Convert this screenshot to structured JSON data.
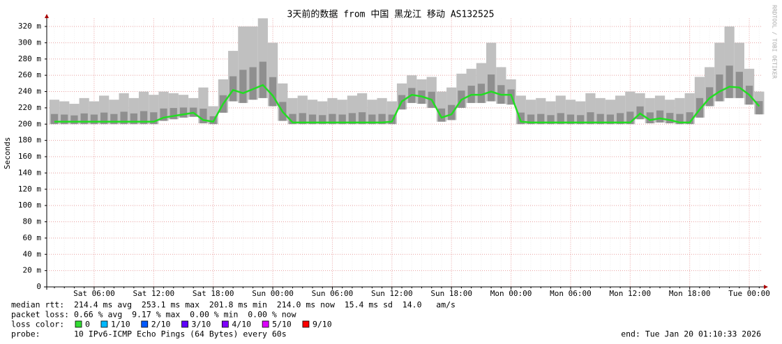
{
  "chart_data": {
    "type": "smokeping",
    "title": "3天前的数据 from 中国 黑龙江 移动 AS132525",
    "y_label": "Seconds",
    "side_text": "RRDTOOL / TOBI OETIKER",
    "ylim": [
      0,
      330
    ],
    "yticks": [
      0,
      {
        "value": 20,
        "label": "20 m"
      },
      {
        "value": 40,
        "label": "40 m"
      },
      {
        "value": 60,
        "label": "60 m"
      },
      {
        "value": 80,
        "label": "80 m"
      },
      {
        "value": 100,
        "label": "100 m"
      },
      {
        "value": 120,
        "label": "120 m"
      },
      {
        "value": 140,
        "label": "140 m"
      },
      {
        "value": 160,
        "label": "160 m"
      },
      {
        "value": 180,
        "label": "180 m"
      },
      {
        "value": 200,
        "label": "200 m"
      },
      {
        "value": 220,
        "label": "220 m"
      },
      {
        "value": 240,
        "label": "240 m"
      },
      {
        "value": 260,
        "label": "260 m"
      },
      {
        "value": 280,
        "label": "280 m"
      },
      {
        "value": 300,
        "label": "300 m"
      },
      {
        "value": 320,
        "label": "320 m"
      }
    ],
    "grid": true,
    "categories": [
      null,
      null,
      null,
      null,
      "Sat 06:00",
      null,
      null,
      null,
      null,
      null,
      "Sat 12:00",
      null,
      null,
      null,
      null,
      null,
      "Sat 18:00",
      null,
      null,
      null,
      null,
      null,
      "Sun 00:00",
      null,
      null,
      null,
      null,
      null,
      "Sun 06:00",
      null,
      null,
      null,
      null,
      null,
      "Sun 12:00",
      null,
      null,
      null,
      null,
      null,
      "Sun 18:00",
      null,
      null,
      null,
      null,
      null,
      "Mon 00:00",
      null,
      null,
      null,
      null,
      null,
      "Mon 06:00",
      null,
      null,
      null,
      null,
      null,
      "Mon 12:00",
      null,
      null,
      null,
      null,
      null,
      "Mon 18:00",
      null,
      null,
      null,
      null,
      null,
      "Tue 00:00",
      null
    ],
    "median": {
      "color": "#22dd22",
      "values": [
        203,
        203,
        203,
        203,
        203,
        203,
        203,
        203,
        203,
        203,
        203,
        208,
        210,
        212,
        214,
        205,
        203,
        225,
        242,
        238,
        243,
        248,
        235,
        215,
        202,
        202,
        202,
        202,
        202,
        202,
        202,
        202,
        202,
        202,
        203,
        228,
        236,
        234,
        230,
        208,
        212,
        230,
        236,
        236,
        240,
        236,
        236,
        203,
        202,
        202,
        202,
        202,
        202,
        202,
        202,
        202,
        202,
        202,
        202,
        213,
        205,
        207,
        205,
        202,
        202,
        218,
        232,
        240,
        246,
        245,
        236,
        222
      ]
    },
    "smoke": {
      "color": "#c0c0c0",
      "dark": "#555555",
      "low": [
        200,
        200,
        200,
        200,
        200,
        200,
        200,
        200,
        200,
        200,
        200,
        204,
        206,
        208,
        209,
        201,
        200,
        214,
        228,
        226,
        230,
        232,
        222,
        204,
        200,
        200,
        200,
        200,
        200,
        200,
        200,
        200,
        200,
        200,
        200,
        218,
        226,
        225,
        220,
        203,
        205,
        220,
        226,
        226,
        228,
        225,
        224,
        200,
        200,
        200,
        200,
        200,
        200,
        200,
        200,
        200,
        200,
        200,
        200,
        206,
        201,
        202,
        201,
        200,
        200,
        208,
        222,
        228,
        232,
        232,
        224,
        212
      ],
      "high": [
        230,
        228,
        225,
        232,
        228,
        235,
        230,
        238,
        232,
        240,
        236,
        240,
        238,
        236,
        232,
        245,
        222,
        255,
        290,
        320,
        320,
        330,
        300,
        250,
        232,
        235,
        230,
        228,
        232,
        230,
        235,
        238,
        230,
        232,
        228,
        250,
        260,
        255,
        258,
        240,
        245,
        262,
        268,
        275,
        300,
        270,
        255,
        235,
        230,
        232,
        228,
        235,
        230,
        228,
        238,
        232,
        230,
        235,
        240,
        238,
        232,
        235,
        230,
        232,
        238,
        258,
        270,
        300,
        320,
        300,
        268,
        240
      ]
    },
    "footer": {
      "rtt": "median rtt:  214.4 ms avg  253.1 ms max  201.8 ms min  214.0 ms now  15.4 ms sd  14.0   am/s",
      "loss": "packet loss: 0.66 % avg  9.17 % max  0.00 % min  0.00 % now",
      "loss_title": "loss color:",
      "loss_colors": [
        {
          "label": "0",
          "color": "#33dd33"
        },
        {
          "label": "1/10",
          "color": "#00b8ff"
        },
        {
          "label": "2/10",
          "color": "#0059ff"
        },
        {
          "label": "3/10",
          "color": "#5e00ff"
        },
        {
          "label": "4/10",
          "color": "#7e00ff"
        },
        {
          "label": "5/10",
          "color": "#dd00ff"
        },
        {
          "label": "9/10",
          "color": "#ff0000"
        }
      ],
      "probe": "probe:       10 IPv6-ICMP Echo Pings (64 Bytes) every 60s",
      "end": "end: Tue Jan 20 01:10:33 2026"
    }
  }
}
